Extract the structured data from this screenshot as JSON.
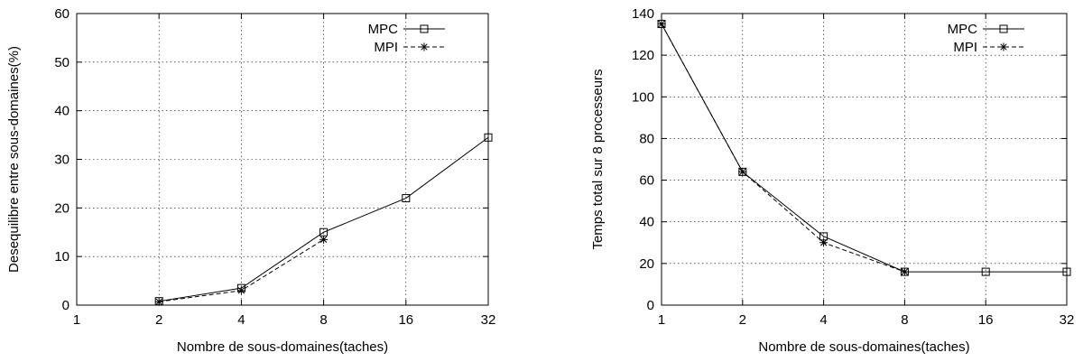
{
  "chart_data": [
    {
      "type": "line",
      "title": "",
      "xlabel": "Nombre de sous-domaines(taches)",
      "ylabel": "Desequilibre entre sous-domaines(%)",
      "x_scale": "log2",
      "x_ticks": [
        1,
        2,
        4,
        8,
        16,
        32
      ],
      "x_tick_labels": [
        "1",
        "2",
        "4",
        "8",
        "16",
        "32"
      ],
      "ylim": [
        0,
        60
      ],
      "y_ticks": [
        0,
        10,
        20,
        30,
        40,
        50,
        60
      ],
      "y_tick_labels": [
        "0",
        "10",
        "20",
        "30",
        "40",
        "50",
        "60"
      ],
      "grid": true,
      "legend_position": "top-right",
      "series": [
        {
          "name": "MPC",
          "marker": "square",
          "line": "solid",
          "x": [
            2,
            4,
            8,
            16,
            32
          ],
          "values": [
            0.8,
            3.5,
            15,
            22,
            34.5
          ]
        },
        {
          "name": "MPI",
          "marker": "star",
          "line": "dashed",
          "x": [
            2,
            4,
            8
          ],
          "values": [
            0.7,
            3.0,
            13.5
          ]
        }
      ]
    },
    {
      "type": "line",
      "title": "",
      "xlabel": "Nombre de sous-domaines(taches)",
      "ylabel": "Temps total sur 8 processeurs",
      "x_scale": "log2",
      "x_ticks": [
        1,
        2,
        4,
        8,
        16,
        32
      ],
      "x_tick_labels": [
        "1",
        "2",
        "4",
        "8",
        "16",
        "32"
      ],
      "ylim": [
        0,
        140
      ],
      "y_ticks": [
        0,
        20,
        40,
        60,
        80,
        100,
        120,
        140
      ],
      "y_tick_labels": [
        "0",
        "20",
        "40",
        "60",
        "80",
        "100",
        "120",
        "140"
      ],
      "grid": true,
      "legend_position": "top-right",
      "series": [
        {
          "name": "MPC",
          "marker": "square",
          "line": "solid",
          "x": [
            1,
            2,
            4,
            8,
            16,
            32
          ],
          "values": [
            135,
            64,
            33,
            16,
            16,
            16
          ]
        },
        {
          "name": "MPI",
          "marker": "star",
          "line": "dashed",
          "x": [
            1,
            2,
            4,
            8
          ],
          "values": [
            135,
            64,
            30,
            16
          ]
        }
      ]
    }
  ]
}
